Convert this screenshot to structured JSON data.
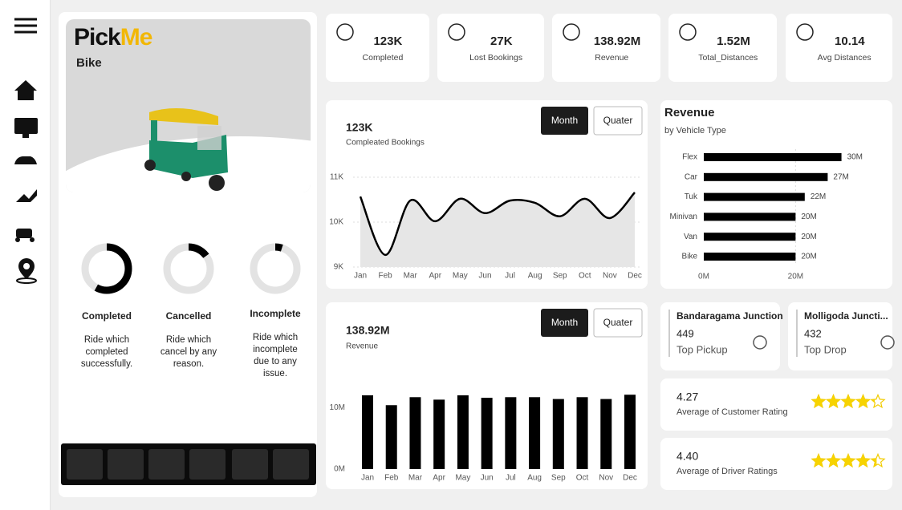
{
  "logo": {
    "pick": "Pick",
    "me": "Me"
  },
  "vehicle": "Bike",
  "ride_status": [
    {
      "title": "Completed",
      "description": "Ride which completed successfully.",
      "share": 58
    },
    {
      "title": "Cancelled",
      "description": "Ride which cancel by any reason.",
      "share": 15
    },
    {
      "title": "Incomplete",
      "description": "Ride which incomplete due to any issue.",
      "share": 5
    }
  ],
  "kpis": [
    {
      "value": "123K",
      "label": "Completed"
    },
    {
      "value": "27K",
      "label": "Lost Bookings"
    },
    {
      "value": "138.92M",
      "label": "Revenue"
    },
    {
      "value": "1.52M",
      "label": "Total_Distances"
    },
    {
      "value": "10.14",
      "label": "Avg Distances"
    }
  ],
  "chart_data": [
    {
      "type": "line",
      "title": "123K",
      "subtitle": "Compleated Bookings",
      "buttons": [
        "Month",
        "Quater"
      ],
      "categories": [
        "Jan",
        "Feb",
        "Mar",
        "Apr",
        "May",
        "Jun",
        "Jul",
        "Aug",
        "Sep",
        "Oct",
        "Nov",
        "Dec"
      ],
      "values": [
        10570,
        9270,
        10480,
        10020,
        10520,
        10200,
        10480,
        10430,
        10130,
        10520,
        10090,
        10660
      ],
      "ylim": [
        9000,
        11000
      ],
      "yticks": [
        {
          "value": 9000,
          "label": "9K"
        },
        {
          "value": 10000,
          "label": "10K"
        },
        {
          "value": 11000,
          "label": "11K"
        }
      ],
      "color": "#000000",
      "area_color": "#e6e6e6",
      "grid": true
    },
    {
      "type": "barh",
      "title": "Revenue",
      "subtitle": "by Vehicle Type",
      "categories": [
        "Flex",
        "Car",
        "Tuk",
        "Minivan",
        "Van",
        "Bike"
      ],
      "values": [
        30000000,
        27000000,
        22000000,
        20000000,
        20000000,
        20000000
      ],
      "value_labels": [
        "30M",
        "27M",
        "22M",
        "20M",
        "20M",
        "20M"
      ],
      "xlim": [
        0,
        32000000
      ],
      "xticks": [
        {
          "value": 0,
          "label": "0M"
        },
        {
          "value": 20000000,
          "label": "20M"
        }
      ],
      "color": "#000000",
      "grid": true
    },
    {
      "type": "bar",
      "title": "138.92M",
      "subtitle": "Revenue",
      "buttons": [
        "Month",
        "Quater"
      ],
      "categories": [
        "Jan",
        "Feb",
        "Mar",
        "Apr",
        "May",
        "Jun",
        "Jul",
        "Aug",
        "Sep",
        "Oct",
        "Nov",
        "Dec"
      ],
      "values": [
        12000000,
        10400000,
        11700000,
        11300000,
        12000000,
        11600000,
        11700000,
        11700000,
        11400000,
        11700000,
        11400000,
        12100000
      ],
      "ylim": [
        0,
        15000000
      ],
      "yticks": [
        {
          "value": 0,
          "label": "0M"
        },
        {
          "value": 10000000,
          "label": "10M"
        }
      ],
      "color": "#000000",
      "grid": false
    }
  ],
  "locations": [
    {
      "name": "Bandaragama Junction",
      "count": "449",
      "label": "Top Pickup"
    },
    {
      "name": "Molligoda Juncti...",
      "count": "432",
      "label": "Top Drop"
    }
  ],
  "ratings": [
    {
      "value": 4.27,
      "label": "Average of Customer Rating"
    },
    {
      "value": 4.4,
      "value_label": "4.40",
      "label": "Average of Driver Ratings"
    }
  ]
}
